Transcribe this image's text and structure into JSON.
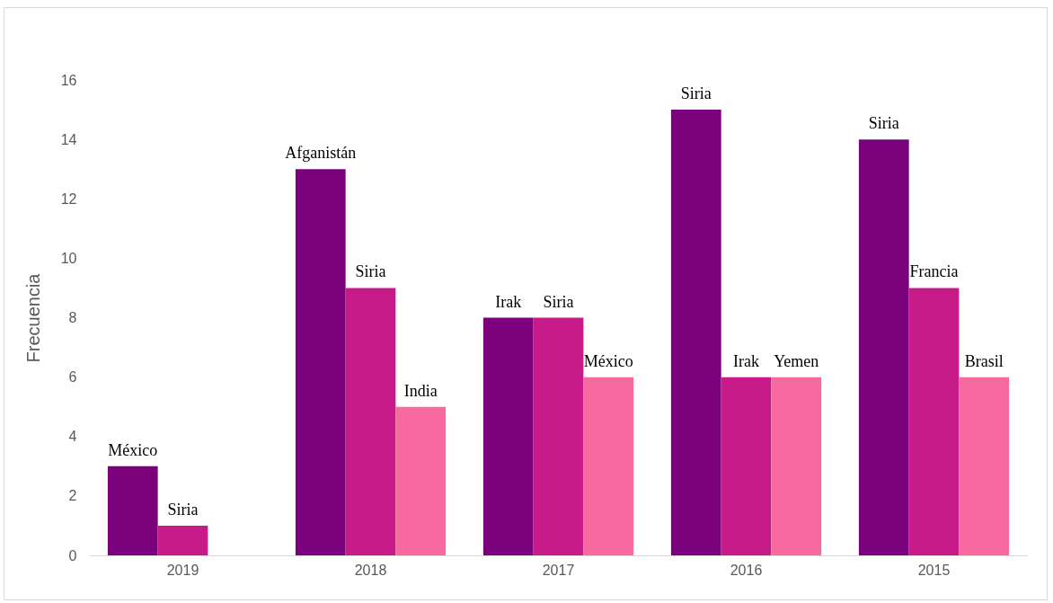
{
  "chart_data": {
    "type": "bar",
    "ylabel": "Frecuencia",
    "categories": [
      "2019",
      "2018",
      "2017",
      "2016",
      "2015"
    ],
    "ylim": [
      0,
      16
    ],
    "yticks": [
      0,
      2,
      4,
      6,
      8,
      10,
      12,
      14,
      16
    ],
    "series": [
      {
        "color": "#7b007b",
        "values": [
          3,
          13,
          8,
          15,
          14
        ],
        "value_labels": [
          "México",
          "Afganistán",
          "Irak",
          "Siria",
          "Siria"
        ]
      },
      {
        "color": "#c71b8a",
        "values": [
          1,
          9,
          8,
          6,
          9
        ],
        "value_labels": [
          "Siria",
          "Siria",
          "Siria",
          "Irak",
          "Francia"
        ]
      },
      {
        "color": "#f76aa0",
        "values": [
          null,
          5,
          6,
          6,
          6
        ],
        "value_labels": [
          null,
          "India",
          "México",
          "Yemen",
          "Brasil"
        ]
      }
    ]
  }
}
